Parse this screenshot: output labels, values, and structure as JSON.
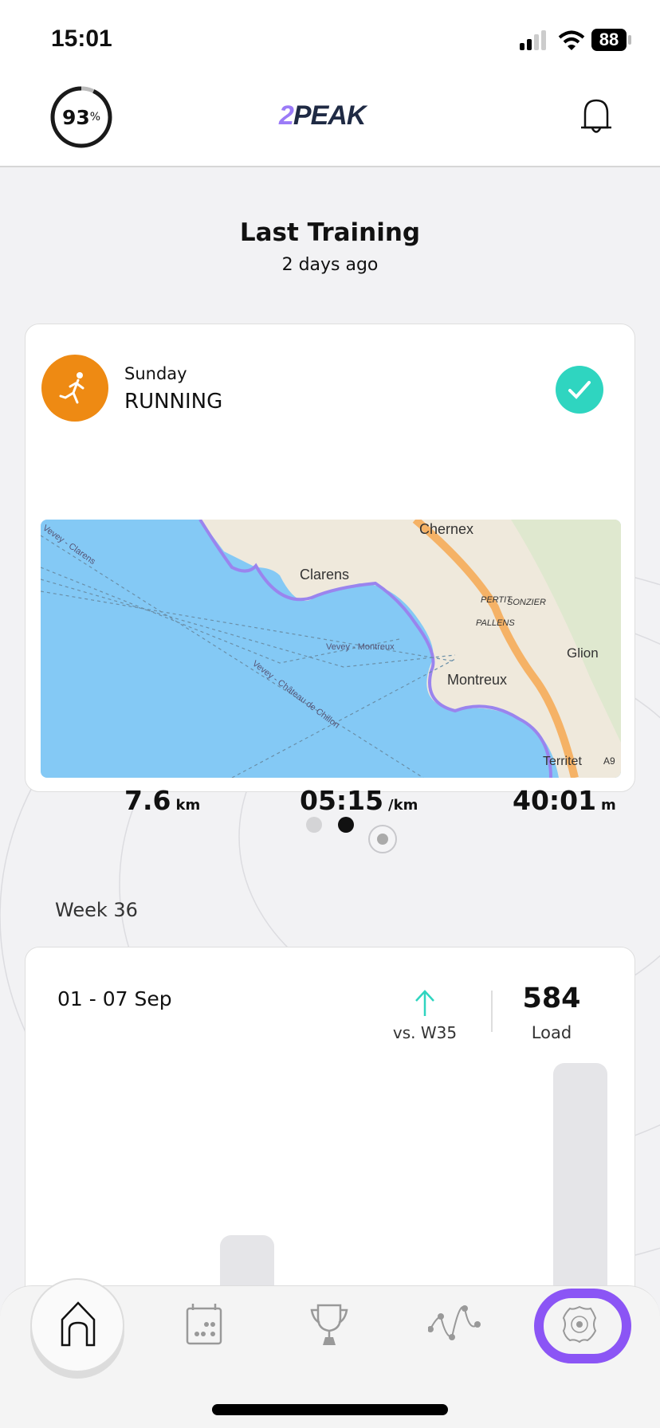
{
  "status_bar": {
    "time": "15:01",
    "battery": "88"
  },
  "header": {
    "readiness_percent": 93,
    "readiness_value": "93",
    "readiness_unit": "%",
    "logo_prefix": "2",
    "logo_text": "PEAK"
  },
  "last_training": {
    "title": "Last Training",
    "subtitle": "2 days ago",
    "card": {
      "day": "Sunday",
      "sport": "RUNNING",
      "completed": true,
      "distance": "7.6",
      "distance_unit": "km",
      "pace": "05:15",
      "pace_unit": "/km",
      "duration": "40:01",
      "duration_unit": "m",
      "map_labels": [
        "Chernex",
        "Clarens",
        "PERTIT",
        "SONZIER",
        "PALLENS",
        "Glion",
        "Montreux",
        "Territet",
        "A9",
        "Vevey - Clarens",
        "Vevey - Montreux",
        "Vevey - Château de Chillon"
      ]
    }
  },
  "pager": {
    "pages": 2,
    "active": 2
  },
  "week": {
    "label": "Week 36",
    "range": "01 - 07 Sep",
    "trend": "up",
    "compare": "vs. W35",
    "load": "584",
    "load_label": "Load"
  },
  "tabs": [
    {
      "name": "home",
      "active": true
    },
    {
      "name": "calendar"
    },
    {
      "name": "trophy"
    },
    {
      "name": "analytics"
    },
    {
      "name": "settings",
      "highlighted": true
    }
  ],
  "colors": {
    "accent": "#8b55f5",
    "running": "#ee8a13",
    "done": "#2fd5c0",
    "trend_up": "#2fd5c0"
  }
}
